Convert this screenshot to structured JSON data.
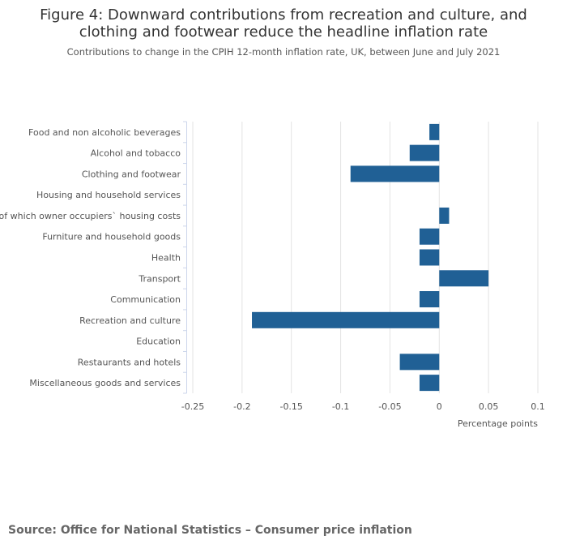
{
  "chart_data": {
    "type": "bar",
    "orientation": "horizontal",
    "title": "Figure 4: Downward contributions from recreation and culture, and clothing and footwear reduce the headline inflation rate",
    "title_lines": [
      "Figure 4: Downward contributions from recreation and culture, and",
      "clothing and footwear reduce the headline inflation rate"
    ],
    "subtitle": "Contributions to change in the CPIH 12-month inflation rate, UK, between June and July 2021",
    "categories": [
      "Food and non alcoholic beverages",
      "Alcohol and tobacco",
      "Clothing and footwear",
      "Housing and household services",
      "of which owner occupiers` housing costs",
      "Furniture and household goods",
      "Health",
      "Transport",
      "Communication",
      "Recreation and culture",
      "Education",
      "Restaurants and hotels",
      "Miscellaneous goods and services"
    ],
    "values": [
      -0.01,
      -0.03,
      -0.09,
      0,
      0.01,
      -0.02,
      -0.02,
      0.05,
      -0.02,
      -0.19,
      0,
      -0.04,
      -0.02
    ],
    "xlabel": "Percentage points",
    "ylabel": "",
    "xlim": [
      -0.25,
      0.1
    ],
    "xticks": [
      "-0.25",
      "-0.2",
      "-0.15",
      "-0.1",
      "-0.05",
      "0",
      "0.05",
      "0.1"
    ],
    "grid": true,
    "bar_color": "#206095",
    "legend": "none"
  },
  "source": "Source: Office for National Statistics – Consumer price inflation"
}
